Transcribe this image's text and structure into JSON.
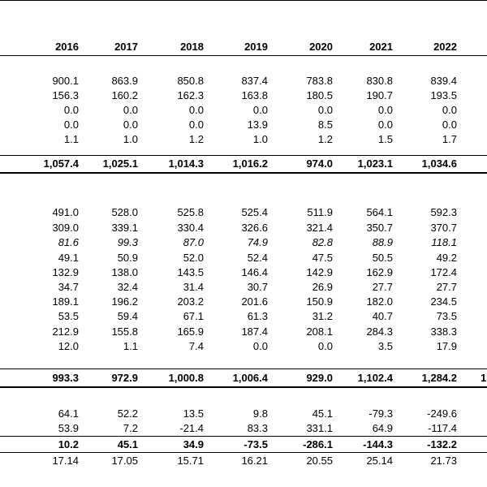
{
  "years": [
    "2016",
    "2017",
    "2018",
    "2019",
    "2020",
    "2021",
    "2022"
  ],
  "rows": [
    {
      "style": "normal",
      "values": [
        "900.1",
        "863.9",
        "850.8",
        "837.4",
        "783.8",
        "830.8",
        "839.4"
      ]
    },
    {
      "style": "normal",
      "values": [
        "156.3",
        "160.2",
        "162.3",
        "163.8",
        "180.5",
        "190.7",
        "193.5"
      ]
    },
    {
      "style": "normal",
      "values": [
        "0.0",
        "0.0",
        "0.0",
        "0.0",
        "0.0",
        "0.0",
        "0.0"
      ]
    },
    {
      "style": "normal",
      "values": [
        "0.0",
        "0.0",
        "0.0",
        "13.9",
        "8.5",
        "0.0",
        "0.0"
      ]
    },
    {
      "style": "normal",
      "values": [
        "1.1",
        "1.0",
        "1.2",
        "1.0",
        "1.2",
        "1.5",
        "1.7"
      ]
    },
    {
      "style": "bold",
      "values": [
        "1,057.4",
        "1,025.1",
        "1,014.3",
        "1,016.2",
        "974.0",
        "1,023.1",
        "1,034.6"
      ]
    },
    {
      "style": "normal",
      "values": [
        "491.0",
        "528.0",
        "525.8",
        "525.4",
        "511.9",
        "564.1",
        "592.3"
      ]
    },
    {
      "style": "normal",
      "values": [
        "309.0",
        "339.1",
        "330.4",
        "326.6",
        "321.4",
        "350.7",
        "370.7"
      ]
    },
    {
      "style": "italic",
      "values": [
        "81.6",
        "99.3",
        "87.0",
        "74.9",
        "82.8",
        "88.9",
        "118.1"
      ]
    },
    {
      "style": "normal",
      "values": [
        "49.1",
        "50.9",
        "52.0",
        "52.4",
        "47.5",
        "50.5",
        "49.2"
      ]
    },
    {
      "style": "normal",
      "values": [
        "132.9",
        "138.0",
        "143.5",
        "146.4",
        "142.9",
        "162.9",
        "172.4"
      ]
    },
    {
      "style": "normal",
      "values": [
        "34.7",
        "32.4",
        "31.4",
        "30.7",
        "26.9",
        "27.7",
        "27.7"
      ]
    },
    {
      "style": "normal",
      "values": [
        "189.1",
        "196.2",
        "203.2",
        "201.6",
        "150.9",
        "182.0",
        "234.5"
      ]
    },
    {
      "style": "normal",
      "values": [
        "53.5",
        "59.4",
        "67.1",
        "61.3",
        "31.2",
        "40.7",
        "73.5"
      ]
    },
    {
      "style": "normal",
      "values": [
        "212.9",
        "155.8",
        "165.9",
        "187.4",
        "208.1",
        "284.3",
        "338.3"
      ]
    },
    {
      "style": "normal",
      "values": [
        "12.0",
        "1.1",
        "7.4",
        "0.0",
        "0.0",
        "3.5",
        "17.9"
      ]
    },
    {
      "style": "bold",
      "values": [
        "993.3",
        "972.9",
        "1,000.8",
        "1,006.4",
        "929.0",
        "1,102.4",
        "1,284.2"
      ]
    },
    {
      "style": "normal",
      "values": [
        "64.1",
        "52.2",
        "13.5",
        "9.8",
        "45.1",
        "-79.3",
        "-249.6"
      ]
    },
    {
      "style": "normal",
      "values": [
        "53.9",
        "7.2",
        "-21.4",
        "83.3",
        "331.1",
        "64.9",
        "-117.4"
      ]
    },
    {
      "style": "bold",
      "values": [
        "10.2",
        "45.1",
        "34.9",
        "-73.5",
        "-286.1",
        "-144.3",
        "-132.2"
      ]
    },
    {
      "style": "normal",
      "values": [
        "17.14",
        "17.05",
        "15.71",
        "16.21",
        "20.55",
        "25.14",
        "21.73"
      ]
    }
  ],
  "edge_fragment": "1"
}
